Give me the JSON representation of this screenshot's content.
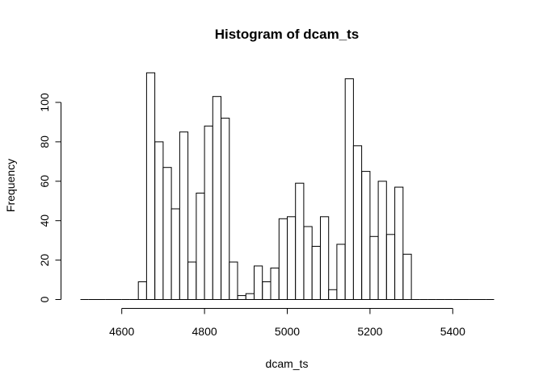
{
  "chart_data": {
    "type": "bar",
    "title": "Histogram of dcam_ts",
    "xlabel": "dcam_ts",
    "ylabel": "Frequency",
    "bin_width": 20,
    "xlim": [
      4500,
      5500
    ],
    "ylim": [
      0,
      115
    ],
    "x_ticks": [
      4600,
      4800,
      5000,
      5200,
      5400
    ],
    "y_ticks": [
      0,
      20,
      40,
      60,
      80,
      100
    ],
    "bin_starts": [
      4500,
      4520,
      4540,
      4560,
      4580,
      4600,
      4620,
      4640,
      4660,
      4680,
      4700,
      4720,
      4740,
      4760,
      4780,
      4800,
      4820,
      4840,
      4860,
      4880,
      4900,
      4920,
      4940,
      4960,
      4980,
      5000,
      5020,
      5040,
      5060,
      5080,
      5100,
      5120,
      5140,
      5160,
      5180,
      5200,
      5220,
      5240,
      5260,
      5280,
      5300,
      5320,
      5340,
      5360,
      5380,
      5400,
      5420,
      5440,
      5460,
      5480
    ],
    "values": [
      0,
      0,
      0,
      0,
      0,
      0,
      0,
      9,
      115,
      80,
      67,
      46,
      85,
      19,
      54,
      88,
      103,
      92,
      19,
      2,
      3,
      17,
      9,
      16,
      41,
      42,
      59,
      37,
      27,
      42,
      5,
      28,
      112,
      78,
      65,
      32,
      60,
      33,
      57,
      23,
      0,
      0,
      0,
      0,
      0,
      0,
      0,
      0,
      0,
      0
    ]
  }
}
